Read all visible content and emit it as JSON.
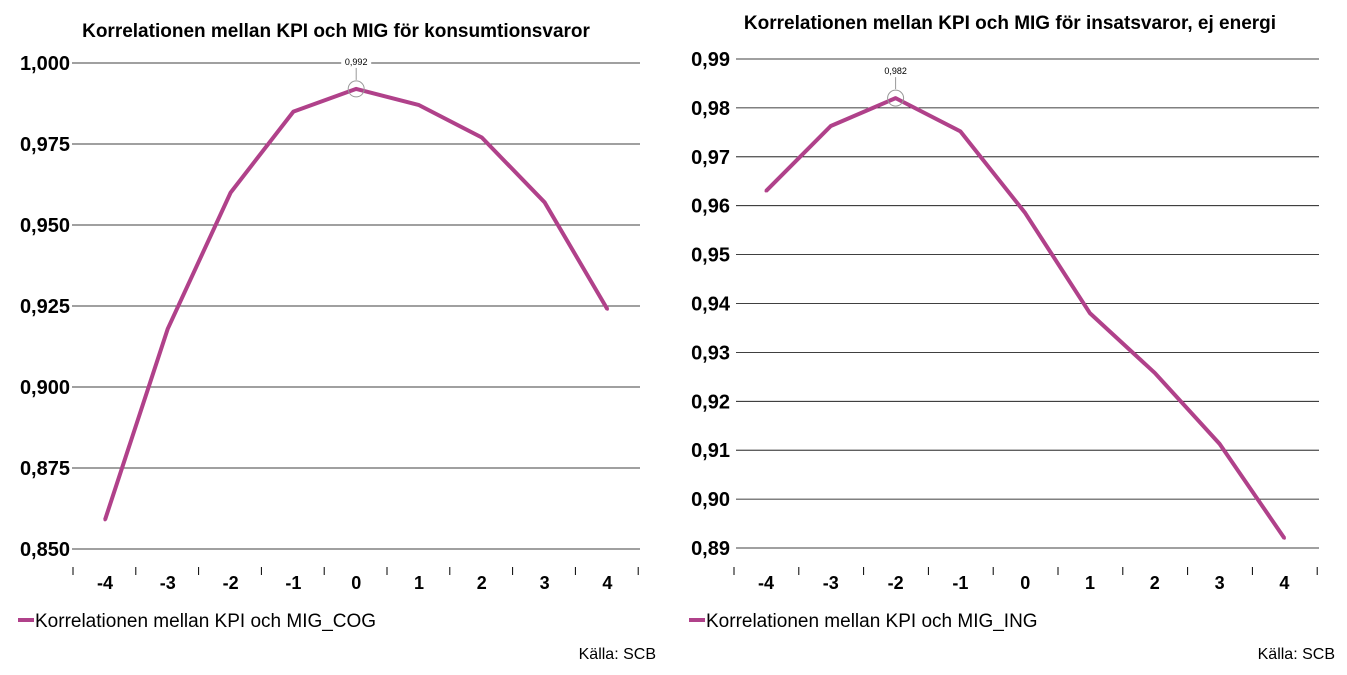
{
  "chart_data": [
    {
      "type": "line",
      "title": "Korrelationen mellan KPI och MIG för konsumtionsvaror",
      "x": [
        -4,
        -3,
        -2,
        -1,
        0,
        1,
        2,
        3,
        4
      ],
      "x_tick_labels": [
        "-4",
        "-3",
        "-2",
        "-1",
        "0",
        "1",
        "2",
        "3",
        "4"
      ],
      "y_tick_labels": [
        "1,000",
        "0,975",
        "0,950",
        "0,925",
        "0,900",
        "0,875",
        "0,850"
      ],
      "ylim": [
        0.85,
        1.0
      ],
      "ytick_step": 0.025,
      "grid": true,
      "series": [
        {
          "name": "Korrelationen mellan KPI och MIG_COG",
          "color": "#b0418a",
          "values": [
            0.859,
            0.918,
            0.96,
            0.985,
            0.992,
            0.987,
            0.977,
            0.957,
            0.924
          ]
        }
      ],
      "annotation": {
        "x": 0,
        "y": 0.992,
        "text": "0,992"
      },
      "legend_position": "bottom-left",
      "source": "Källa: SCB"
    },
    {
      "type": "line",
      "title": "Korrelationen mellan KPI och MIG för insatsvaror, ej energi",
      "x": [
        -4,
        -3,
        -2,
        -1,
        0,
        1,
        2,
        3,
        4
      ],
      "x_tick_labels": [
        "-4",
        "-3",
        "-2",
        "-1",
        "0",
        "1",
        "2",
        "3",
        "4"
      ],
      "y_tick_labels": [
        "0,99",
        "0,98",
        "0,97",
        "0,96",
        "0,95",
        "0,94",
        "0,93",
        "0,92",
        "0,91",
        "0,90",
        "0,89"
      ],
      "ylim": [
        0.89,
        0.99
      ],
      "ytick_step": 0.01,
      "grid": true,
      "series": [
        {
          "name": "Korrelationen mellan KPI och MIG_ING",
          "color": "#b0418a",
          "values": [
            0.963,
            0.9763,
            0.982,
            0.9752,
            0.9585,
            0.938,
            0.9258,
            0.9113,
            0.892
          ]
        }
      ],
      "annotation": {
        "x": -2,
        "y": 0.982,
        "text": "0,982"
      },
      "legend_position": "bottom-left",
      "source": "Källa: SCB"
    }
  ]
}
